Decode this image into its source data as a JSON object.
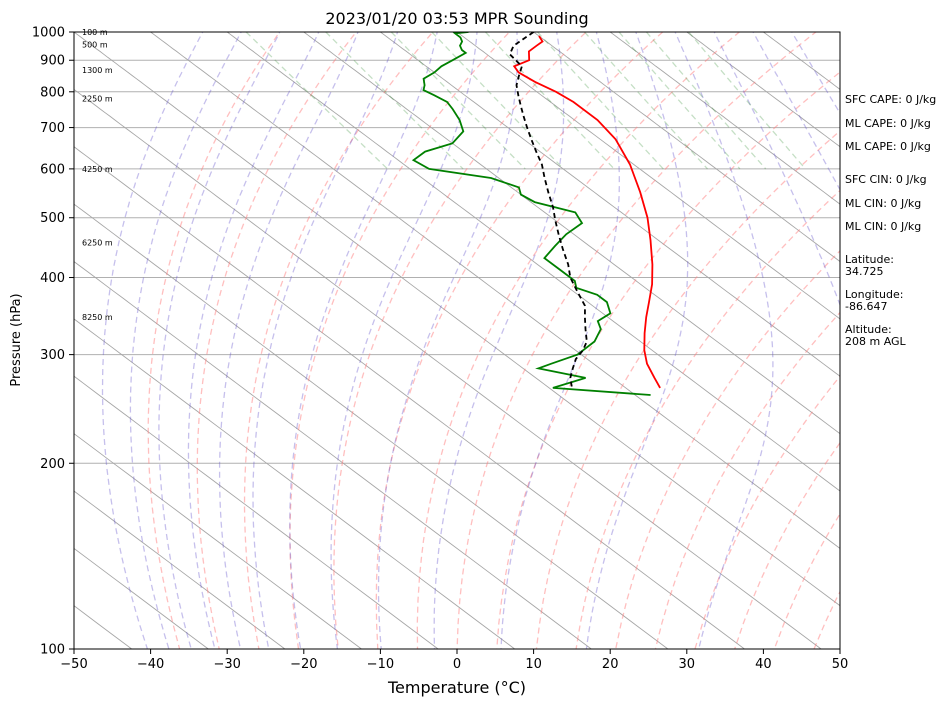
{
  "chart_data": {
    "type": "line",
    "title": "2023/01/20 03:53 MPR Sounding",
    "xlabel": "Temperature (°C)",
    "ylabel": "Pressure (hPa)",
    "xlim": [
      -50,
      50
    ],
    "ylim": [
      1000,
      100
    ],
    "yscale": "log",
    "x_ticks": [
      -50,
      -40,
      -30,
      -20,
      -10,
      0,
      10,
      20,
      30,
      40,
      50
    ],
    "y_ticks": [
      1000,
      900,
      800,
      700,
      600,
      500,
      400,
      300,
      200,
      100
    ],
    "height_labels": [
      {
        "text": "100 m",
        "p": 1000
      },
      {
        "text": "500 m",
        "p": 955
      },
      {
        "text": "1300 m",
        "p": 868
      },
      {
        "text": "2250 m",
        "p": 780
      },
      {
        "text": "4250 m",
        "p": 600
      },
      {
        "text": "6250 m",
        "p": 456
      },
      {
        "text": "8250 m",
        "p": 345
      }
    ],
    "series": [
      {
        "color": "#ff0000",
        "points": [
          [
            10,
            985
          ],
          [
            9.5,
            965
          ],
          [
            8,
            950
          ],
          [
            6,
            930
          ],
          [
            4.5,
            900
          ],
          [
            1.5,
            880
          ],
          [
            1,
            860
          ],
          [
            1.5,
            830
          ],
          [
            2.5,
            800
          ],
          [
            3,
            770
          ],
          [
            3,
            720
          ],
          [
            2,
            670
          ],
          [
            -0.5,
            610
          ],
          [
            -4,
            550
          ],
          [
            -7.5,
            500
          ],
          [
            -11,
            460
          ],
          [
            -15,
            420
          ],
          [
            -18.5,
            390
          ],
          [
            -22,
            365
          ],
          [
            -25,
            345
          ],
          [
            -28,
            325
          ],
          [
            -31,
            305
          ],
          [
            -33,
            290
          ],
          [
            -34.5,
            275
          ],
          [
            -35.5,
            265
          ]
        ]
      },
      {
        "color": "#008000",
        "points": [
          [
            1.5,
            1000
          ],
          [
            -0.5,
            995
          ],
          [
            -0.5,
            990
          ],
          [
            -0.5,
            980
          ],
          [
            -1,
            965
          ],
          [
            -2,
            950
          ],
          [
            -2.5,
            935
          ],
          [
            -2.5,
            925
          ],
          [
            -5.5,
            900
          ],
          [
            -8,
            880
          ],
          [
            -10,
            860
          ],
          [
            -12.5,
            840
          ],
          [
            -13.5,
            820
          ],
          [
            -14.5,
            805
          ],
          [
            -14,
            790
          ],
          [
            -13.5,
            770
          ],
          [
            -14,
            750
          ],
          [
            -15,
            720
          ],
          [
            -16.5,
            690
          ],
          [
            -20,
            660
          ],
          [
            -25,
            640
          ],
          [
            -28,
            620
          ],
          [
            -27.5,
            600
          ],
          [
            -21,
            580
          ],
          [
            -19,
            560
          ],
          [
            -20,
            545
          ],
          [
            -19.5,
            530
          ],
          [
            -16,
            510
          ],
          [
            -17,
            490
          ],
          [
            -21,
            470
          ],
          [
            -24.5,
            450
          ],
          [
            -28,
            430
          ],
          [
            -28,
            410
          ],
          [
            -28,
            395
          ],
          [
            -29,
            385
          ],
          [
            -27.5,
            375
          ],
          [
            -27.5,
            365
          ],
          [
            -29,
            350
          ],
          [
            -32,
            340
          ],
          [
            -33,
            330
          ],
          [
            -36,
            315
          ],
          [
            -40.5,
            300
          ],
          [
            -45.5,
            290
          ],
          [
            -48,
            285
          ],
          [
            -43.5,
            275
          ],
          [
            -49.5,
            265
          ],
          [
            -38,
            258
          ]
        ]
      },
      {
        "color": "#000000",
        "dashed": true,
        "points": [
          [
            10,
            1000
          ],
          [
            5,
            950
          ],
          [
            3,
            920
          ],
          [
            2.5,
            880
          ],
          [
            0.5,
            850
          ],
          [
            -1.5,
            820
          ],
          [
            -3,
            790
          ],
          [
            -4.5,
            760
          ],
          [
            -6,
            730
          ],
          [
            -7.5,
            700
          ],
          [
            -9,
            670
          ],
          [
            -10.5,
            640
          ],
          [
            -12,
            610
          ],
          [
            -14,
            580
          ],
          [
            -16,
            550
          ],
          [
            -18,
            520
          ],
          [
            -20,
            495
          ],
          [
            -22,
            470
          ],
          [
            -24,
            445
          ],
          [
            -26,
            420
          ],
          [
            -28,
            400
          ],
          [
            -29.5,
            380
          ],
          [
            -31,
            360
          ],
          [
            -33,
            345
          ],
          [
            -35,
            330
          ],
          [
            -37,
            315
          ],
          [
            -39,
            305
          ],
          [
            -41.5,
            295
          ],
          [
            -43.5,
            285
          ],
          [
            -45.5,
            275
          ],
          [
            -47,
            265
          ]
        ]
      }
    ]
  },
  "side_panel": {
    "sfc_cape": "SFC CAPE: 0 J/kg",
    "ml_cape_1": "ML CAPE: 0 J/kg",
    "ml_cape_2": "ML CAPE: 0 J/kg",
    "sfc_cin": "SFC CIN: 0 J/kg",
    "ml_cin_1": "ML CIN: 0 J/kg",
    "ml_cin_2": "ML CIN: 0 J/kg",
    "latitude_label": "Latitude:",
    "latitude_value": "34.725",
    "longitude_label": "Longitude:",
    "longitude_value": "-86.647",
    "altitude_label": "Altitude:",
    "altitude_value": "208 m AGL"
  }
}
